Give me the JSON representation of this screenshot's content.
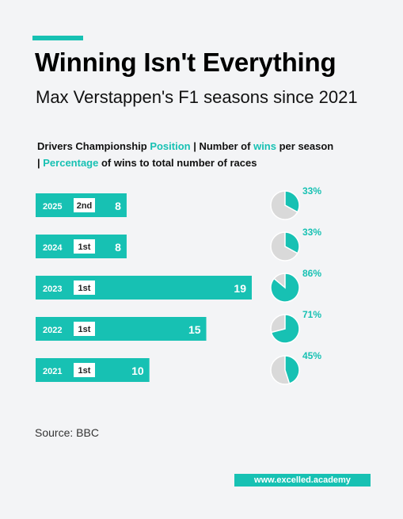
{
  "header": {
    "title": "Winning Isn't Everything",
    "subtitle": "Max Verstappen's F1 seasons since 2021"
  },
  "description": {
    "part1": "Drivers Championship ",
    "hl1": "Position",
    "part2": " | Number of ",
    "hl2": "wins",
    "part3": " per season | ",
    "hl3": "Percentage",
    "part4": " of wins to total number of races"
  },
  "chart_data": {
    "type": "bar",
    "orientation": "horizontal",
    "categories": [
      "2025",
      "2024",
      "2023",
      "2022",
      "2021"
    ],
    "positions": [
      "2nd",
      "1st",
      "1st",
      "1st",
      "1st"
    ],
    "wins": [
      8,
      8,
      19,
      15,
      10
    ],
    "win_percentages": [
      33,
      33,
      86,
      71,
      45
    ],
    "win_percentage_labels": [
      "33%",
      "33%",
      "86%",
      "71%",
      "45%"
    ],
    "xlim": [
      0,
      19
    ]
  },
  "footer": {
    "source": "Source: BBC",
    "brand": "www.excelled.academy"
  },
  "colors": {
    "accent": "#17c1b3",
    "pie_rest": "#d9d9d9",
    "background": "#f3f4f6"
  }
}
